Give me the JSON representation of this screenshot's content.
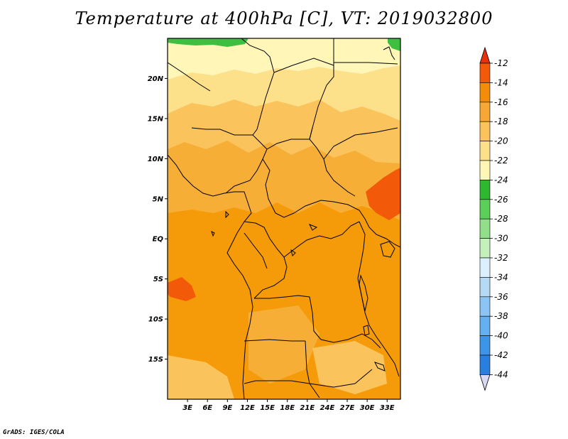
{
  "title": "Temperature at 400hPa [C], VT: 2019032800",
  "credit": "GrADS: IGES/COLA",
  "map": {
    "variable": "Temperature at 400hPa",
    "units": "C",
    "valid_time": "2019032800",
    "lon_range_deg": [
      0,
      35
    ],
    "lat_range_deg": [
      -20,
      25
    ],
    "lat_labels": [
      {
        "text": "20N",
        "lat": 20
      },
      {
        "text": "15N",
        "lat": 15
      },
      {
        "text": "10N",
        "lat": 10
      },
      {
        "text": "5N",
        "lat": 5
      },
      {
        "text": "EQ",
        "lat": 0
      },
      {
        "text": "5S",
        "lat": -5
      },
      {
        "text": "10S",
        "lat": -10
      },
      {
        "text": "15S",
        "lat": -15
      }
    ],
    "lon_labels": [
      {
        "text": "3E",
        "lon": 3
      },
      {
        "text": "6E",
        "lon": 6
      },
      {
        "text": "9E",
        "lon": 9
      },
      {
        "text": "12E",
        "lon": 12
      },
      {
        "text": "15E",
        "lon": 15
      },
      {
        "text": "18E",
        "lon": 18
      },
      {
        "text": "21E",
        "lon": 21
      },
      {
        "text": "24E",
        "lon": 24
      },
      {
        "text": "27E",
        "lon": 27
      },
      {
        "text": "30E",
        "lon": 30
      },
      {
        "text": "33E",
        "lon": 33
      }
    ]
  },
  "colorbar": {
    "labels": [
      "-12",
      "-14",
      "-16",
      "-18",
      "-20",
      "-22",
      "-24",
      "-26",
      "-28",
      "-30",
      "-32",
      "-34",
      "-36",
      "-38",
      "-40",
      "-42",
      "-44"
    ],
    "colors": [
      "#d9d9f5",
      "#0c1a78",
      "#0e3fb0",
      "#1a5ed0",
      "#2a7ee0",
      "#3e95e8",
      "#64b0f0",
      "#8cc5f3",
      "#b4daf6",
      "#dcefff",
      "#c4f0bc",
      "#92de8a",
      "#5cce5a",
      "#2eb830",
      "#fff6b8",
      "#fde08a",
      "#fbc35c",
      "#f6a736",
      "#f28c0a",
      "#f25a0a",
      "#e8300a"
    ]
  },
  "regions": {
    "colors": {
      "ocean_orange": "#f59b0a",
      "mid_orange": "#f7ae36",
      "light_orange": "#fbc35c",
      "pale_yellow": "#fde08a",
      "very_pale": "#fff6b8",
      "green": "#3fbf40",
      "red_orange": "#f25a0a"
    }
  }
}
